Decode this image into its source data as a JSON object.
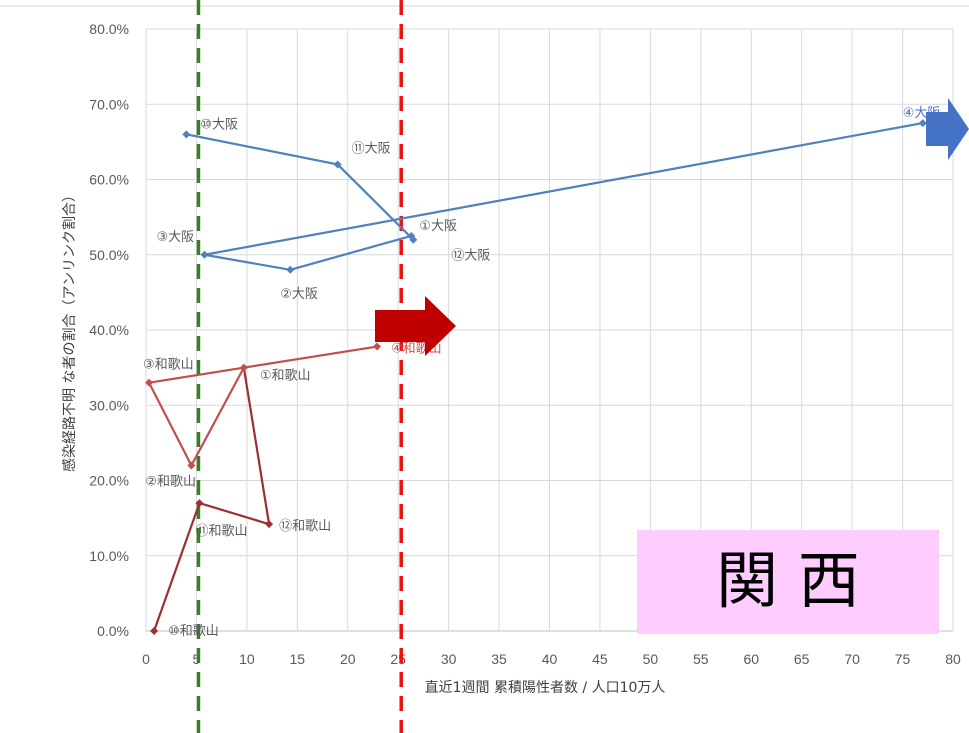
{
  "chart_data": {
    "type": "scatter",
    "xlabel": "直近1週間 累積陽性者数 / 人口10万人",
    "ylabel": "感染経路不明 な者の割合（アンリンク割合）",
    "xlim": [
      0,
      80
    ],
    "ylim": [
      0,
      0.8
    ],
    "x_ticks": [
      "0",
      "5",
      "10",
      "15",
      "20",
      "25",
      "30",
      "35",
      "40",
      "45",
      "50",
      "55",
      "60",
      "65",
      "70",
      "75",
      "80"
    ],
    "y_ticks": [
      "0.0%",
      "10.0%",
      "20.0%",
      "30.0%",
      "40.0%",
      "50.0%",
      "60.0%",
      "70.0%",
      "80.0%"
    ],
    "grid": true,
    "vlines": [
      {
        "x": 5.2,
        "color": "#3a7d23",
        "style": "dashed"
      },
      {
        "x": 25.3,
        "color": "#ee1111",
        "style": "dashed"
      }
    ],
    "series": [
      {
        "name": "大阪",
        "color": "#4f81bd",
        "points": [
          {
            "label": "⑩大阪",
            "x": 4,
            "y": 0.66
          },
          {
            "label": "⑪大阪",
            "x": 19,
            "y": 0.62
          },
          {
            "label": "⑫大阪",
            "x": 26.5,
            "y": 0.52
          },
          {
            "label": "①大阪",
            "x": 26.3,
            "y": 0.525
          },
          {
            "label": "②大阪",
            "x": 14.3,
            "y": 0.48
          },
          {
            "label": "③大阪",
            "x": 5.8,
            "y": 0.5
          },
          {
            "label": "④大阪",
            "x": 77,
            "y": 0.675
          }
        ]
      },
      {
        "name": "和歌山",
        "color": "#c0504d",
        "points": [
          {
            "label": "⑩和歌山",
            "x": 0.8,
            "y": 0.0
          },
          {
            "label": "⑪和歌山",
            "x": 5.3,
            "y": 0.17
          },
          {
            "label": "⑫和歌山",
            "x": 12.2,
            "y": 0.142
          },
          {
            "label": "①和歌山",
            "x": 9.7,
            "y": 0.35
          },
          {
            "label": "②和歌山",
            "x": 4.5,
            "y": 0.22
          },
          {
            "label": "③和歌山",
            "x": 0.3,
            "y": 0.33
          },
          {
            "label": "④和歌山",
            "x": 22.9,
            "y": 0.378
          }
        ]
      }
    ]
  },
  "region_label": "関 西"
}
